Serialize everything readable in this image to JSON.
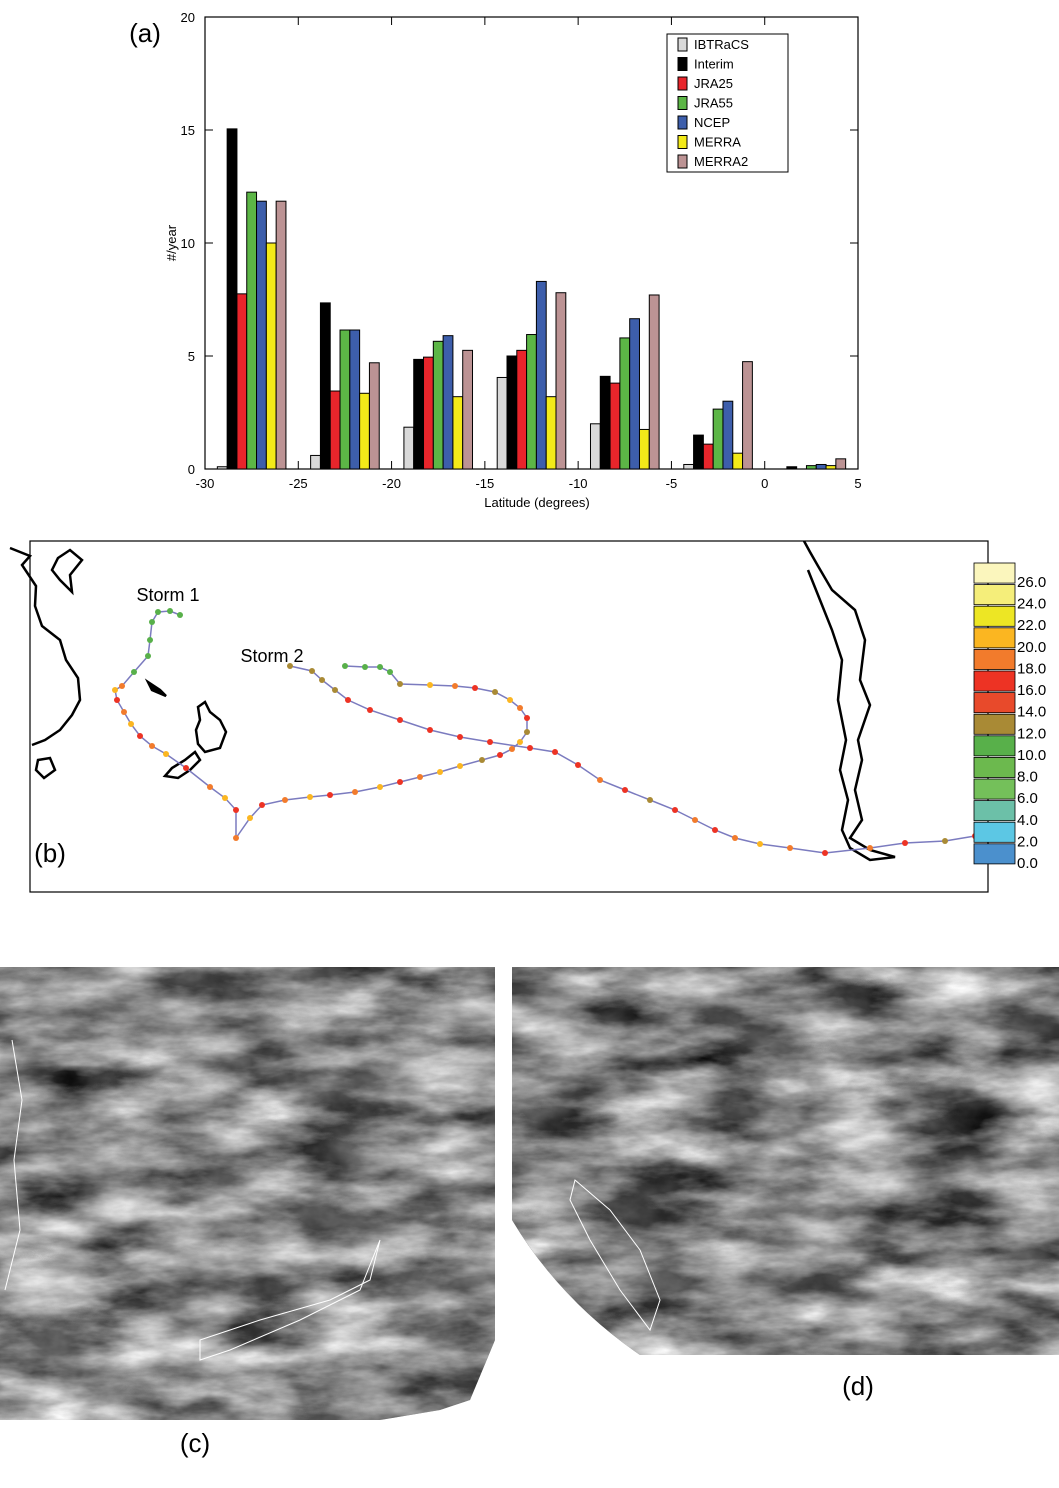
{
  "chart_data": {
    "type": "bar",
    "x": [
      -27.5,
      -22.5,
      -17.5,
      -12.5,
      -7.5,
      -2.5,
      2.5
    ],
    "series": [
      {
        "name": "IBTRaCS",
        "color": "#d9d9d9",
        "values": [
          0.1,
          0.6,
          1.85,
          4.05,
          2.0,
          0.2,
          0.0
        ]
      },
      {
        "name": "Interim",
        "color": "#000000",
        "values": [
          15.05,
          7.35,
          4.85,
          5.0,
          4.1,
          1.5,
          0.1
        ]
      },
      {
        "name": "JRA25",
        "color": "#e8252b",
        "values": [
          7.75,
          3.45,
          4.95,
          5.25,
          3.8,
          1.1,
          0.0
        ]
      },
      {
        "name": "JRA55",
        "color": "#5cb646",
        "values": [
          12.25,
          6.15,
          5.65,
          5.95,
          5.8,
          2.65,
          0.15
        ]
      },
      {
        "name": "NCEP",
        "color": "#3d5eab",
        "values": [
          11.85,
          6.15,
          5.9,
          8.3,
          6.65,
          3.0,
          0.2
        ]
      },
      {
        "name": "MERRA",
        "color": "#f3ea19",
        "values": [
          10.0,
          3.35,
          3.2,
          3.2,
          1.75,
          0.7,
          0.15
        ]
      },
      {
        "name": "MERRA2",
        "color": "#bc9394",
        "values": [
          11.85,
          4.7,
          5.25,
          7.8,
          7.7,
          4.75,
          0.45
        ]
      }
    ],
    "panel_label": "(a)",
    "x_label": "Latitude (degrees)",
    "y_label": "#/year",
    "xlim": [
      -30,
      5
    ],
    "xticks": [
      -30,
      -25,
      -20,
      -15,
      -10,
      -5,
      0,
      5
    ],
    "ylim": [
      0,
      20
    ],
    "yticks": [
      0,
      5,
      10,
      15,
      20
    ],
    "legend": "upper right"
  },
  "map": {
    "panel_label": "(b)",
    "storm_labels": [
      "Storm 1",
      "Storm 2"
    ],
    "colorbar": {
      "colors": [
        "#fbf6bd",
        "#f5ee7a",
        "#ede624",
        "#fbb621",
        "#f27b2c",
        "#ed3324",
        "#e84a2b",
        "#a98a35",
        "#58b04a",
        "#6cb94e",
        "#74c05a",
        "#6cc0a8",
        "#5cc7e4",
        "#4b90cd"
      ],
      "ticks": [
        {
          "value": 26,
          "label": "26.0"
        },
        {
          "value": 24,
          "label": "24.0"
        },
        {
          "value": 22,
          "label": "22.0"
        },
        {
          "value": 20,
          "label": "20.0"
        },
        {
          "value": 18,
          "label": "18.0"
        },
        {
          "value": 16,
          "label": "16.0"
        },
        {
          "value": 14,
          "label": "14.0"
        },
        {
          "value": 12,
          "label": "12.0"
        },
        {
          "value": 10,
          "label": "10.0"
        },
        {
          "value": 8,
          "label": "8.0"
        },
        {
          "value": 6,
          "label": "6.0"
        },
        {
          "value": 4,
          "label": "4.0"
        },
        {
          "value": 2,
          "label": "2.0"
        },
        {
          "value": 0,
          "label": "0.0"
        }
      ]
    }
  },
  "images": {
    "c": {
      "label": "(c)"
    },
    "d": {
      "label": "(d)"
    }
  }
}
